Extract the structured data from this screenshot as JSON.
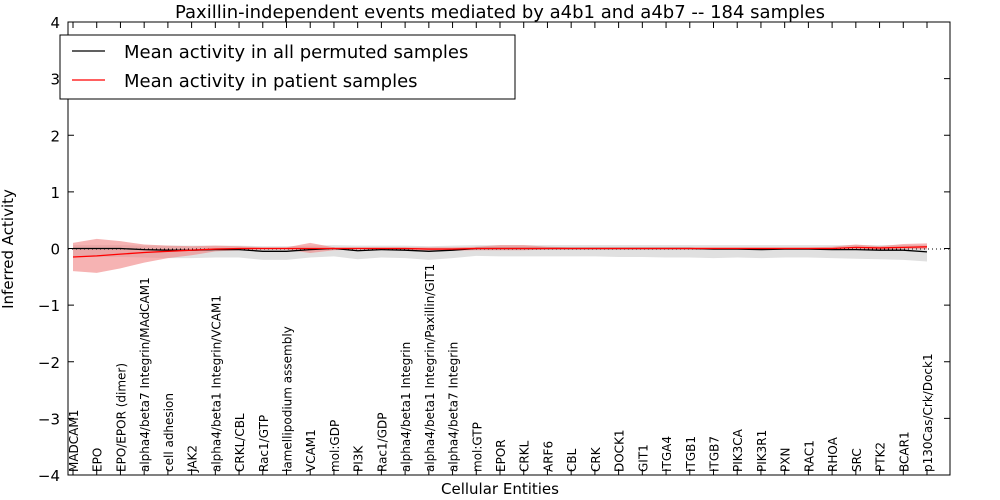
{
  "chart_data": {
    "type": "line",
    "title": "Paxillin-independent events mediated by a4b1 and a4b7 -- 184 samples",
    "xlabel": "Cellular Entities",
    "ylabel": "Inferred Activity",
    "ylim": [
      -4,
      4
    ],
    "yticks": [
      "4",
      "3",
      "2",
      "1",
      "0",
      "−1",
      "−2",
      "−3",
      "−4"
    ],
    "ytick_values": [
      4,
      3,
      2,
      1,
      0,
      -1,
      -2,
      -3,
      -4
    ],
    "legend_position": "top-left",
    "categories": [
      "MADCAM1",
      "EPO",
      "EPO/EPOR (dimer)",
      "alpha4/beta7 Integrin/MAdCAM1",
      "cell adhesion",
      "JAK2",
      "alpha4/beta1 Integrin/VCAM1",
      "CRKL/CBL",
      "Rac1/GTP",
      "lamellipodium assembly",
      "VCAM1",
      "mol:GDP",
      "PI3K",
      "Rac1/GDP",
      "alpha4/beta1 Integrin",
      "alpha4/beta1 Integrin/Paxillin/GIT1",
      "alpha4/beta7 Integrin",
      "mol:GTP",
      "EPOR",
      "CRKL",
      "ARF6",
      "CBL",
      "CRK",
      "DOCK1",
      "GIT1",
      "ITGA4",
      "ITGB1",
      "ITGB7",
      "PIK3CA",
      "PIK3R1",
      "PXN",
      "RAC1",
      "RHOA",
      "SRC",
      "PTK2",
      "BCAR1",
      "p130Cas/Crk/Dock1"
    ],
    "series": [
      {
        "name": "Mean activity in all permuted samples",
        "color": "#000000",
        "band_color": "#cccccc",
        "values": [
          0,
          0,
          0,
          -0.02,
          -0.03,
          -0.03,
          -0.02,
          -0.02,
          -0.05,
          -0.05,
          -0.02,
          0,
          -0.04,
          -0.02,
          -0.03,
          -0.05,
          -0.03,
          0,
          0,
          0,
          0,
          0,
          0,
          0,
          0,
          0,
          0,
          -0.01,
          -0.01,
          -0.02,
          -0.01,
          -0.01,
          -0.02,
          -0.02,
          -0.03,
          -0.03,
          -0.06
        ],
        "lower": [
          -0.15,
          -0.15,
          -0.15,
          -0.16,
          -0.17,
          -0.17,
          -0.16,
          -0.16,
          -0.2,
          -0.2,
          -0.16,
          -0.14,
          -0.19,
          -0.16,
          -0.17,
          -0.2,
          -0.17,
          -0.13,
          -0.14,
          -0.14,
          -0.14,
          -0.14,
          -0.14,
          -0.15,
          -0.15,
          -0.16,
          -0.16,
          -0.17,
          -0.16,
          -0.17,
          -0.16,
          -0.16,
          -0.17,
          -0.18,
          -0.19,
          -0.2,
          -0.23
        ],
        "upper": [
          0.06,
          0.06,
          0.06,
          0.05,
          0.05,
          0.05,
          0.05,
          0.05,
          0.04,
          0.04,
          0.05,
          0.06,
          0.05,
          0.05,
          0.05,
          0.04,
          0.05,
          0.06,
          0.06,
          0.06,
          0.06,
          0.06,
          0.06,
          0.06,
          0.06,
          0.06,
          0.06,
          0.06,
          0.06,
          0.06,
          0.06,
          0.06,
          0.06,
          0.06,
          0.06,
          0.06,
          0.06
        ]
      },
      {
        "name": "Mean activity in patient samples",
        "color": "#ff0000",
        "band_color": "#f08080",
        "values": [
          -0.15,
          -0.13,
          -0.1,
          -0.07,
          -0.05,
          -0.03,
          -0.01,
          0,
          0,
          0,
          0,
          0,
          0,
          0,
          0,
          -0.01,
          -0.01,
          0,
          0,
          0,
          0,
          0,
          0,
          0,
          0,
          0,
          0,
          0,
          0,
          0,
          0,
          0,
          0,
          0.02,
          0.01,
          0.02,
          0.03
        ],
        "lower": [
          -0.4,
          -0.43,
          -0.35,
          -0.25,
          -0.17,
          -0.12,
          -0.05,
          -0.03,
          -0.02,
          -0.02,
          -0.08,
          -0.03,
          -0.02,
          -0.02,
          -0.02,
          -0.04,
          -0.04,
          -0.03,
          -0.03,
          -0.03,
          -0.02,
          -0.02,
          -0.02,
          -0.02,
          -0.02,
          -0.02,
          -0.02,
          -0.02,
          -0.02,
          -0.02,
          -0.02,
          -0.02,
          -0.02,
          -0.01,
          -0.02,
          -0.01,
          -0.01
        ],
        "upper": [
          0.1,
          0.17,
          0.13,
          0.07,
          0.05,
          0.04,
          0.05,
          0.04,
          0.02,
          0.02,
          0.1,
          0.02,
          0.02,
          0.02,
          0.02,
          0.02,
          0.02,
          0.03,
          0.06,
          0.06,
          0.03,
          0.02,
          0.02,
          0.02,
          0.02,
          0.02,
          0.02,
          0.02,
          0.02,
          0.02,
          0.02,
          0.02,
          0.03,
          0.07,
          0.04,
          0.08,
          0.09
        ]
      }
    ]
  }
}
